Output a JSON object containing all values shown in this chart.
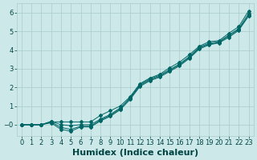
{
  "xlabel": "Humidex (Indice chaleur)",
  "ylabel": "",
  "background_color": "#cce8e8",
  "grid_color": "#aacccc",
  "line_color": "#006666",
  "xlim": [
    -0.5,
    23.5
  ],
  "ylim": [
    -0.6,
    6.5
  ],
  "xticks": [
    0,
    1,
    2,
    3,
    4,
    5,
    6,
    7,
    8,
    9,
    10,
    11,
    12,
    13,
    14,
    15,
    16,
    17,
    18,
    19,
    20,
    21,
    22,
    23
  ],
  "yticks": [
    0,
    1,
    2,
    3,
    4,
    5,
    6
  ],
  "line1_x": [
    0,
    1,
    2,
    3,
    4,
    5,
    6,
    7,
    8,
    9,
    10,
    11,
    12,
    13,
    14,
    15,
    16,
    17,
    18,
    19,
    20,
    21,
    22,
    23
  ],
  "line1_y": [
    0.0,
    0.0,
    0.0,
    0.15,
    0.15,
    0.15,
    0.15,
    0.15,
    0.5,
    0.75,
    1.0,
    1.5,
    2.2,
    2.5,
    2.7,
    3.05,
    3.35,
    3.75,
    4.2,
    4.45,
    4.5,
    4.9,
    5.25,
    6.1
  ],
  "line2_x": [
    0,
    1,
    2,
    3,
    4,
    5,
    6,
    7,
    8,
    9,
    10,
    11,
    12,
    13,
    14,
    15,
    16,
    17,
    18,
    19,
    20,
    21,
    22,
    23
  ],
  "line2_y": [
    0.0,
    0.0,
    0.0,
    0.18,
    0.0,
    -0.05,
    0.0,
    0.0,
    0.3,
    0.55,
    0.9,
    1.4,
    2.1,
    2.4,
    2.6,
    2.9,
    3.2,
    3.6,
    4.1,
    4.32,
    4.4,
    4.75,
    5.1,
    5.85
  ],
  "line3_x": [
    0,
    1,
    2,
    3,
    4,
    5,
    6,
    7,
    8,
    9,
    10,
    11,
    12,
    13,
    14,
    15,
    16,
    17,
    18,
    19,
    20,
    21,
    22,
    23
  ],
  "line3_y": [
    0.0,
    0.0,
    0.0,
    0.15,
    -0.15,
    -0.25,
    -0.08,
    -0.08,
    0.25,
    0.5,
    0.85,
    1.45,
    2.15,
    2.45,
    2.65,
    2.95,
    3.25,
    3.65,
    4.15,
    4.37,
    4.45,
    4.8,
    5.15,
    5.95
  ],
  "line4_x": [
    0,
    1,
    2,
    3,
    4,
    5,
    6,
    7,
    8,
    9,
    10,
    11,
    12,
    13,
    14,
    15,
    16,
    17,
    18,
    19,
    20,
    21,
    22,
    23
  ],
  "line4_y": [
    0.0,
    0.0,
    0.0,
    0.1,
    -0.25,
    -0.35,
    -0.12,
    -0.12,
    0.2,
    0.45,
    0.8,
    1.35,
    2.05,
    2.35,
    2.55,
    2.85,
    3.15,
    3.55,
    4.05,
    4.28,
    4.38,
    4.68,
    5.05,
    5.82
  ],
  "font_color": "#004444",
  "tick_fontsize": 6,
  "label_fontsize": 8
}
